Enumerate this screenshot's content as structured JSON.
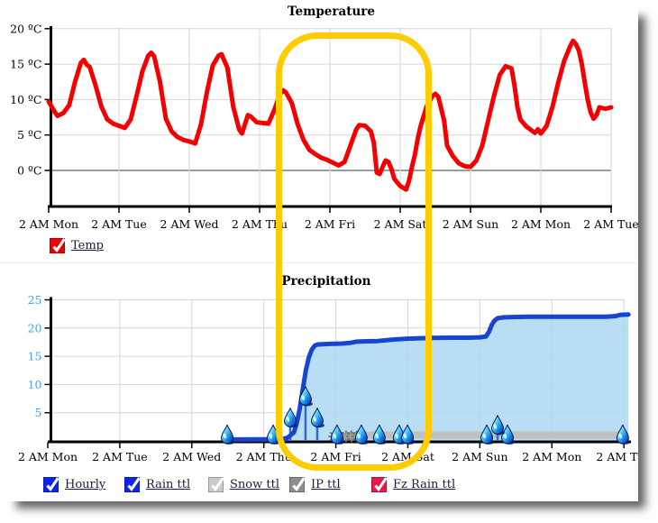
{
  "highlight": {
    "color": "#ffcc00",
    "meaning": "highlighted time range Thu night through Sat"
  },
  "chart_data": [
    {
      "type": "line",
      "title": "Temperature",
      "x_tick_labels": [
        "2 AM Mon",
        "2 AM Tue",
        "2 AM Wed",
        "2 AM Thu",
        "2 AM Fri",
        "2 AM Sat",
        "2 AM Sun",
        "2 AM Mon",
        "2 AM Tue"
      ],
      "x_tick_hours": [
        0,
        24,
        48,
        72,
        96,
        120,
        144,
        168,
        192
      ],
      "xlim_hours": [
        0,
        192
      ],
      "ylim": [
        -5,
        20
      ],
      "grid": true,
      "legend_position": "bottom-left",
      "y_ticks": [
        {
          "label": "20 ºC",
          "value": 20
        },
        {
          "label": "15 ºC",
          "value": 15
        },
        {
          "label": "10 ºC",
          "value": 10
        },
        {
          "label": "5 ºC",
          "value": 5
        },
        {
          "label": "0 ºC",
          "value": 0
        }
      ],
      "series": [
        {
          "name": "Temp",
          "color": "#f40000",
          "points": [
            [
              0,
              9.7
            ],
            [
              2,
              8.3
            ],
            [
              3,
              7.7
            ],
            [
              5,
              8.1
            ],
            [
              7,
              9.2
            ],
            [
              9,
              12.5
            ],
            [
              11,
              15.2
            ],
            [
              12,
              15.6
            ],
            [
              13,
              14.9
            ],
            [
              14,
              14.6
            ],
            [
              16,
              12
            ],
            [
              18,
              9
            ],
            [
              20,
              7.2
            ],
            [
              22,
              6.6
            ],
            [
              24,
              6.3
            ],
            [
              26,
              6
            ],
            [
              28,
              7.2
            ],
            [
              30,
              10.5
            ],
            [
              32,
              14
            ],
            [
              34,
              16.2
            ],
            [
              35,
              16.6
            ],
            [
              36,
              16.1
            ],
            [
              38,
              12.5
            ],
            [
              40,
              7.3
            ],
            [
              42,
              5.5
            ],
            [
              44,
              4.7
            ],
            [
              46,
              4.3
            ],
            [
              48,
              4.1
            ],
            [
              50,
              3.8
            ],
            [
              52,
              6.5
            ],
            [
              54,
              11
            ],
            [
              56,
              14.8
            ],
            [
              58,
              16.2
            ],
            [
              59,
              16.4
            ],
            [
              61,
              14.5
            ],
            [
              63,
              9
            ],
            [
              65,
              5.8
            ],
            [
              66,
              5.2
            ],
            [
              67,
              6.5
            ],
            [
              68,
              7.8
            ],
            [
              69,
              7.6
            ],
            [
              71,
              6.8
            ],
            [
              73,
              6.7
            ],
            [
              75,
              6.6
            ],
            [
              77,
              8.5
            ],
            [
              79,
              10.8
            ],
            [
              80,
              11.3
            ],
            [
              81,
              11
            ],
            [
              83,
              9.5
            ],
            [
              85,
              6.5
            ],
            [
              87,
              4.3
            ],
            [
              89,
              2.9
            ],
            [
              91,
              2.3
            ],
            [
              93,
              1.8
            ],
            [
              95,
              1.5
            ],
            [
              97,
              1.1
            ],
            [
              99,
              0.7
            ],
            [
              101,
              1.2
            ],
            [
              103,
              3.5
            ],
            [
              105,
              5.8
            ],
            [
              106,
              6.4
            ],
            [
              108,
              6.3
            ],
            [
              110,
              5.5
            ],
            [
              111,
              3.9
            ],
            [
              112,
              -0.3
            ],
            [
              113,
              -0.5
            ],
            [
              114,
              0.5
            ],
            [
              115,
              1.4
            ],
            [
              116,
              1.2
            ],
            [
              117,
              0.2
            ],
            [
              118,
              -1.2
            ],
            [
              120,
              -2.2
            ],
            [
              122,
              -2.7
            ],
            [
              123,
              -1.5
            ],
            [
              124,
              0.5
            ],
            [
              125,
              2.2
            ],
            [
              126,
              4.5
            ],
            [
              127,
              6.3
            ],
            [
              129,
              9
            ],
            [
              131,
              10.5
            ],
            [
              132,
              10.8
            ],
            [
              133,
              10.4
            ],
            [
              135,
              7
            ],
            [
              136,
              3.5
            ],
            [
              138,
              2
            ],
            [
              140,
              1
            ],
            [
              142,
              0.6
            ],
            [
              144,
              0.5
            ],
            [
              146,
              1.4
            ],
            [
              148,
              3.5
            ],
            [
              150,
              7
            ],
            [
              152,
              10.5
            ],
            [
              154,
              13.5
            ],
            [
              156,
              14.7
            ],
            [
              158,
              14.4
            ],
            [
              159,
              12
            ],
            [
              160,
              9
            ],
            [
              161,
              7.2
            ],
            [
              163,
              6.2
            ],
            [
              165,
              5.6
            ],
            [
              166,
              5.3
            ],
            [
              167,
              5.8
            ],
            [
              168,
              5.2
            ],
            [
              170,
              6.3
            ],
            [
              172,
              9
            ],
            [
              174,
              12.5
            ],
            [
              176,
              15.5
            ],
            [
              178,
              17.5
            ],
            [
              179,
              18.3
            ],
            [
              180,
              17.8
            ],
            [
              181,
              16.9
            ],
            [
              182,
              15
            ],
            [
              183,
              12.4
            ],
            [
              184,
              10
            ],
            [
              185,
              8.2
            ],
            [
              186,
              7.3
            ],
            [
              187,
              7.8
            ],
            [
              188,
              8.9
            ],
            [
              190,
              8.7
            ],
            [
              192,
              8.9
            ]
          ]
        }
      ],
      "legend": [
        {
          "label": "Temp",
          "checkbox_color": "#ee0000",
          "checked": true
        }
      ]
    },
    {
      "type": "area",
      "title": "Precipitation",
      "x_tick_labels": [
        "2 AM Mon",
        "2 AM Tue",
        "2 AM Wed",
        "2 AM Thu",
        "2 AM Fri",
        "2 AM Sat",
        "2 AM Sun",
        "2 AM Mon",
        "2 AM Tue"
      ],
      "x_tick_hours": [
        0,
        24,
        48,
        72,
        96,
        120,
        144,
        168,
        192
      ],
      "xlim_hours": [
        0,
        194
      ],
      "ylim": [
        0,
        25
      ],
      "grid": true,
      "legend_position": "bottom",
      "axis_label_color": "#49a4e6",
      "y_ticks": [
        {
          "label": "25",
          "value": 25
        },
        {
          "label": "20",
          "value": 20
        },
        {
          "label": "15",
          "value": 15
        },
        {
          "label": "10",
          "value": 10
        },
        {
          "label": "5",
          "value": 5
        }
      ],
      "series": [
        {
          "name": "Rain ttl",
          "color": "#1744d0",
          "fill": "#add8f2",
          "points": [
            [
              59,
              0
            ],
            [
              60,
              0.25
            ],
            [
              78,
              0.3
            ],
            [
              80,
              0.6
            ],
            [
              82,
              1.5
            ],
            [
              83,
              3.2
            ],
            [
              84,
              5.8
            ],
            [
              85,
              9.2
            ],
            [
              86,
              12.5
            ],
            [
              87,
              14.8
            ],
            [
              88,
              16.2
            ],
            [
              89,
              16.9
            ],
            [
              90,
              17.1
            ],
            [
              94,
              17.2
            ],
            [
              98,
              17.25
            ],
            [
              101,
              17.4
            ],
            [
              103,
              17.6
            ],
            [
              106,
              17.65
            ],
            [
              110,
              17.7
            ],
            [
              113,
              17.85
            ],
            [
              116,
              18
            ],
            [
              119,
              18.1
            ],
            [
              124,
              18.2
            ],
            [
              128,
              18.25
            ],
            [
              134,
              18.3
            ],
            [
              140,
              18.3
            ],
            [
              144,
              18.35
            ],
            [
              146,
              18.5
            ],
            [
              147,
              19.3
            ],
            [
              148,
              20.6
            ],
            [
              149,
              21.4
            ],
            [
              150,
              21.75
            ],
            [
              152,
              21.9
            ],
            [
              155,
              21.95
            ],
            [
              160,
              22
            ],
            [
              170,
              22
            ],
            [
              180,
              22
            ],
            [
              186,
              22
            ],
            [
              189,
              22.1
            ],
            [
              191,
              22.35
            ],
            [
              193.5,
              22.4
            ]
          ]
        },
        {
          "name": "Hourly",
          "color": "#1744d0",
          "points": [
            [
              59,
              0.25
            ],
            [
              79.5,
              0.25
            ]
          ]
        },
        {
          "name": "Snow/IP total band",
          "color": "#c0c0c0",
          "band": {
            "from_hour": 103.3,
            "to_hour": 193.4,
            "top_value": 1.7,
            "bottom_value": 0.4
          }
        }
      ],
      "rain_drop_markers": {
        "axis_hours": [
          59.8,
          75.1,
          96.4,
          104.5,
          110.5,
          117.1,
          119.9,
          146.3,
          153.2,
          191.6
        ],
        "raised": [
          {
            "hour": 80.8,
            "value": 2.5
          },
          {
            "hour": 85.9,
            "value": 6.3
          },
          {
            "hour": 89.8,
            "value": 2.5
          },
          {
            "hour": 149.9,
            "value": 1.2
          }
        ]
      },
      "snowflake_markers_hours": [
        95.5,
        97.3,
        99.4,
        101.2,
        103.0
      ],
      "legend": [
        {
          "label": "Hourly",
          "checkbox_color": "#0f23ee",
          "checked": true
        },
        {
          "label": "Rain ttl",
          "checkbox_color": "#0f23ee",
          "checked": true
        },
        {
          "label": "Snow ttl",
          "checkbox_color": "#cbcbcb",
          "checked": true
        },
        {
          "label": "IP ttl",
          "checkbox_color": "#8e8e8e",
          "checked": true
        },
        {
          "label": "Fz Rain ttl",
          "checkbox_color": "#e6194b",
          "checked": true
        }
      ]
    }
  ]
}
